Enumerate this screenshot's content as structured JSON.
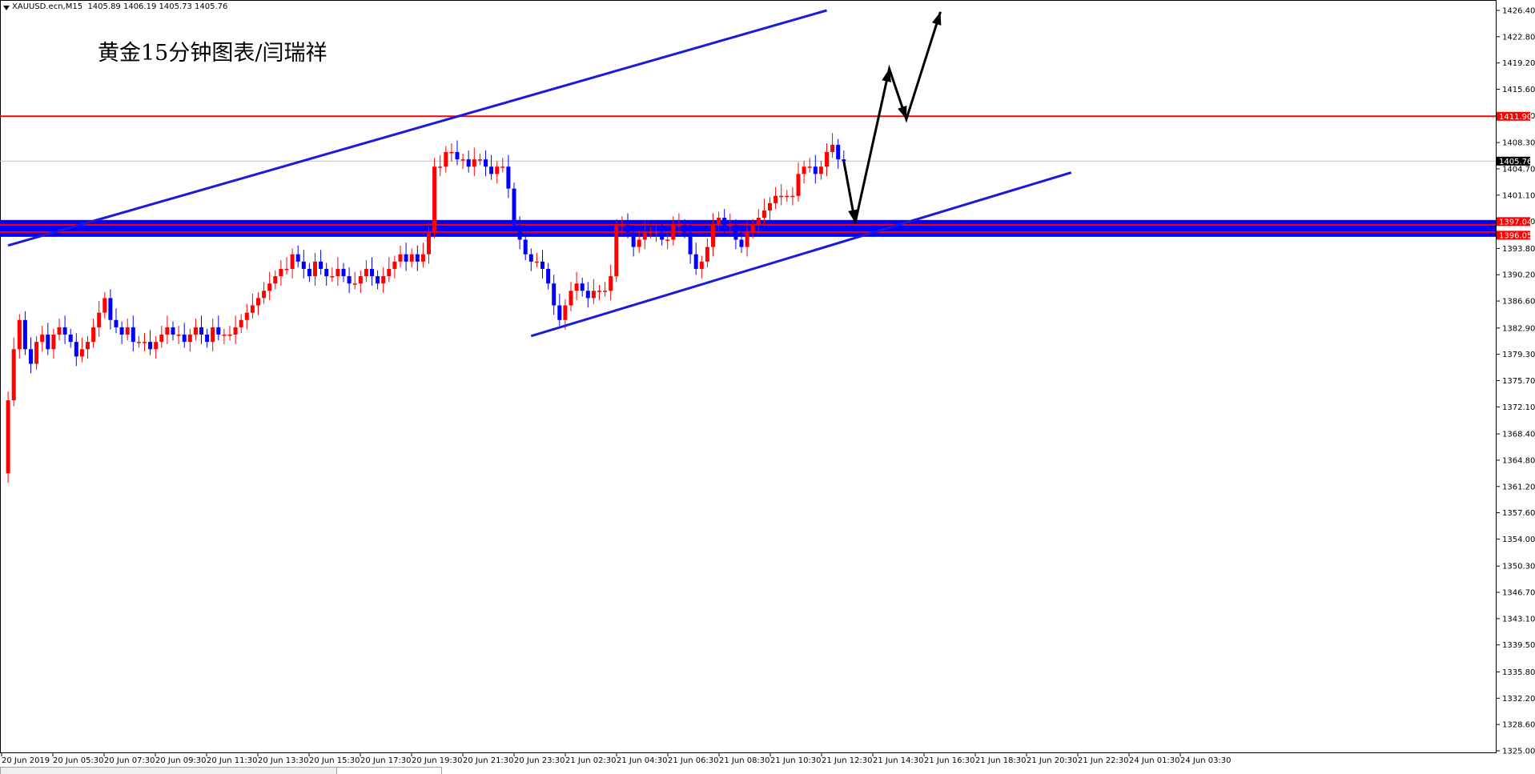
{
  "header": {
    "symbol": "XAUUSD.ecn,M15",
    "ohlc": "1405.89 1406.19 1405.73 1405.76"
  },
  "title": "黄金15分钟图表/闫瑞祥",
  "colors": {
    "bull": "#ff0000",
    "bear": "#0000ff",
    "trendline": "#1a1adc",
    "horizontal": "#ff0000",
    "support_zone": "#0000ff",
    "arrow": "#000000",
    "current_price_line": "#c0c0c0"
  },
  "chart_data": {
    "type": "candlestick",
    "symbol": "XAUUSD.ecn",
    "timeframe": "M15",
    "ylim": [
      1325.0,
      1426.4
    ],
    "y_ticks": [
      "1426.40",
      "1422.80",
      "1419.20",
      "1415.60",
      "1412.00",
      "1408.30",
      "1404.70",
      "1401.10",
      "1397.50",
      "1393.80",
      "1390.20",
      "1386.60",
      "1382.90",
      "1379.30",
      "1375.70",
      "1372.10",
      "1368.40",
      "1364.80",
      "1361.20",
      "1357.60",
      "1354.00",
      "1350.30",
      "1346.70",
      "1343.10",
      "1339.50",
      "1335.80",
      "1332.20",
      "1328.60",
      "1325.00"
    ],
    "x_ticks": [
      "20 Jun 2019",
      "20 Jun 05:30",
      "20 Jun 07:30",
      "20 Jun 09:30",
      "20 Jun 11:30",
      "20 Jun 13:30",
      "20 Jun 15:30",
      "20 Jun 17:30",
      "20 Jun 19:30",
      "20 Jun 21:30",
      "20 Jun 23:30",
      "21 Jun 02:30",
      "21 Jun 04:30",
      "21 Jun 06:30",
      "21 Jun 08:30",
      "21 Jun 10:30",
      "21 Jun 12:30",
      "21 Jun 14:30",
      "21 Jun 16:30",
      "21 Jun 18:30",
      "21 Jun 20:30",
      "21 Jun 22:30",
      "24 Jun 01:30",
      "24 Jun 03:30"
    ],
    "current_price": 1405.76,
    "price_labels": [
      "1411.90",
      "1405.76",
      "1397.04",
      "1396.05"
    ],
    "horizontal_levels": [
      1411.9,
      1397.04,
      1396.05
    ],
    "close_path": [
      [
        0,
        1363
      ],
      [
        1,
        1373
      ],
      [
        2,
        1380
      ],
      [
        3,
        1384
      ],
      [
        4,
        1380
      ],
      [
        5,
        1378
      ],
      [
        6,
        1381
      ],
      [
        7,
        1382
      ],
      [
        8,
        1380
      ],
      [
        9,
        1382
      ],
      [
        10,
        1383
      ],
      [
        11,
        1382
      ],
      [
        12,
        1381
      ],
      [
        13,
        1379
      ],
      [
        14,
        1380
      ],
      [
        15,
        1381
      ],
      [
        16,
        1383
      ],
      [
        17,
        1385
      ],
      [
        18,
        1387
      ],
      [
        19,
        1384
      ],
      [
        20,
        1383
      ],
      [
        21,
        1382
      ],
      [
        22,
        1383
      ],
      [
        23,
        1381
      ],
      [
        24,
        1381
      ],
      [
        25,
        1381
      ],
      [
        26,
        1380
      ],
      [
        27,
        1381
      ],
      [
        28,
        1382
      ],
      [
        29,
        1383
      ],
      [
        30,
        1382
      ],
      [
        31,
        1382
      ],
      [
        32,
        1381
      ],
      [
        33,
        1382
      ],
      [
        34,
        1383
      ],
      [
        35,
        1382
      ],
      [
        36,
        1381
      ],
      [
        37,
        1383
      ],
      [
        38,
        1382
      ],
      [
        39,
        1382
      ],
      [
        40,
        1382
      ],
      [
        41,
        1383
      ],
      [
        42,
        1384
      ],
      [
        43,
        1385
      ],
      [
        44,
        1386
      ],
      [
        45,
        1387
      ],
      [
        46,
        1388
      ],
      [
        47,
        1389
      ],
      [
        48,
        1390
      ],
      [
        49,
        1391
      ],
      [
        50,
        1391
      ],
      [
        51,
        1393
      ],
      [
        52,
        1392
      ],
      [
        53,
        1391
      ],
      [
        54,
        1390
      ],
      [
        55,
        1392
      ],
      [
        56,
        1391
      ],
      [
        57,
        1390
      ],
      [
        58,
        1390
      ],
      [
        59,
        1391
      ],
      [
        60,
        1390
      ],
      [
        61,
        1389
      ],
      [
        62,
        1389
      ],
      [
        63,
        1390
      ],
      [
        64,
        1391
      ],
      [
        65,
        1390
      ],
      [
        66,
        1389
      ],
      [
        67,
        1390
      ],
      [
        68,
        1391
      ],
      [
        69,
        1392
      ],
      [
        70,
        1393
      ],
      [
        71,
        1392
      ],
      [
        72,
        1393
      ],
      [
        73,
        1392
      ],
      [
        74,
        1393
      ],
      [
        75,
        1396
      ],
      [
        76,
        1405
      ],
      [
        77,
        1405
      ],
      [
        78,
        1407
      ],
      [
        79,
        1407
      ],
      [
        80,
        1406
      ],
      [
        81,
        1406
      ],
      [
        82,
        1405
      ],
      [
        83,
        1406
      ],
      [
        84,
        1406
      ],
      [
        85,
        1405
      ],
      [
        86,
        1404
      ],
      [
        87,
        1405
      ],
      [
        88,
        1405
      ],
      [
        89,
        1402
      ],
      [
        90,
        1397
      ],
      [
        91,
        1395
      ],
      [
        92,
        1393
      ],
      [
        93,
        1392
      ],
      [
        94,
        1392
      ],
      [
        95,
        1391
      ],
      [
        96,
        1389
      ],
      [
        97,
        1386
      ],
      [
        98,
        1384
      ],
      [
        99,
        1386
      ],
      [
        100,
        1388
      ],
      [
        101,
        1389
      ],
      [
        102,
        1388
      ],
      [
        103,
        1387
      ],
      [
        104,
        1388
      ],
      [
        105,
        1388
      ],
      [
        106,
        1388
      ],
      [
        107,
        1390
      ],
      [
        108,
        1397
      ],
      [
        109,
        1397
      ],
      [
        110,
        1396
      ],
      [
        111,
        1394
      ],
      [
        112,
        1395
      ],
      [
        113,
        1396
      ],
      [
        114,
        1396
      ],
      [
        115,
        1396
      ],
      [
        116,
        1395
      ],
      [
        117,
        1395
      ],
      [
        118,
        1397
      ],
      [
        119,
        1397
      ],
      [
        120,
        1396
      ],
      [
        121,
        1393
      ],
      [
        122,
        1391
      ],
      [
        123,
        1392
      ],
      [
        124,
        1394
      ],
      [
        125,
        1397
      ],
      [
        126,
        1398
      ],
      [
        127,
        1397
      ],
      [
        128,
        1397
      ],
      [
        129,
        1395
      ],
      [
        130,
        1394
      ],
      [
        131,
        1396
      ],
      [
        132,
        1397
      ],
      [
        133,
        1398
      ],
      [
        134,
        1399
      ],
      [
        135,
        1400
      ],
      [
        136,
        1401
      ],
      [
        137,
        1401
      ],
      [
        138,
        1401
      ],
      [
        139,
        1401
      ],
      [
        140,
        1404
      ],
      [
        141,
        1405
      ],
      [
        142,
        1405
      ],
      [
        143,
        1404
      ],
      [
        144,
        1405
      ],
      [
        145,
        1407
      ],
      [
        146,
        1408
      ],
      [
        147,
        1406
      ],
      [
        148,
        1405.76
      ]
    ],
    "trendlines": [
      {
        "name": "upper channel",
        "from": [
          1,
          1394.2
        ],
        "to": [
          145,
          1426.4
        ]
      },
      {
        "name": "lower channel",
        "from": [
          93,
          1381.8
        ],
        "to": [
          188,
          1404.2
        ]
      }
    ],
    "projection_arrow": [
      [
        148,
        1405.76
      ],
      [
        150,
        1397.3
      ],
      [
        156,
        1418.4
      ],
      [
        159,
        1411.5
      ],
      [
        165,
        1426.2
      ]
    ]
  }
}
